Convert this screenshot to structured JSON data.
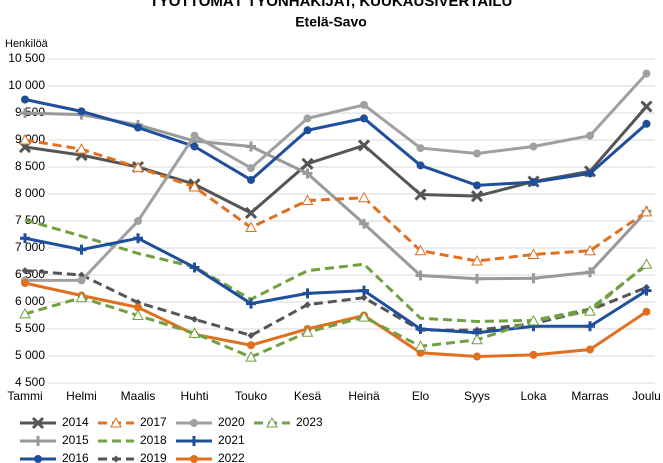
{
  "chart_data": {
    "type": "line",
    "title": "TYÖTTÖMÄT TYÖNHAKIJAT, KUUKAUSIVERTAILU",
    "subtitle": "Etelä-Savo",
    "y_label": "Henkilöä",
    "categories": [
      "Tammi",
      "Helmi",
      "Maalis",
      "Huhti",
      "Touko",
      "Kesä",
      "Heinä",
      "Elo",
      "Syys",
      "Loka",
      "Marras",
      "Joulu"
    ],
    "ylim": [
      4500,
      10500
    ],
    "yticks": [
      {
        "value": 4500,
        "label": "4 500"
      },
      {
        "value": 5000,
        "label": "5 000"
      },
      {
        "value": 5500,
        "label": "5 500"
      },
      {
        "value": 6000,
        "label": "6 000"
      },
      {
        "value": 6500,
        "label": "6 500"
      },
      {
        "value": 7000,
        "label": "7 000"
      },
      {
        "value": 7500,
        "label": "7 500"
      },
      {
        "value": 8000,
        "label": "8 000"
      },
      {
        "value": 8500,
        "label": "8 500"
      },
      {
        "value": 9000,
        "label": "9 000"
      },
      {
        "value": 9500,
        "label": "9 500"
      },
      {
        "value": 10000,
        "label": "10 000"
      },
      {
        "value": 10500,
        "label": "10 500"
      }
    ],
    "grid": true,
    "legend": "bottom",
    "series": [
      {
        "name": "2014",
        "color": "#555555",
        "dashed": false,
        "marker": "x",
        "values": [
          8870,
          8720,
          8500,
          8180,
          7650,
          8560,
          8900,
          7990,
          7960,
          8230,
          8420,
          9620
        ]
      },
      {
        "name": "2015",
        "color": "#999999",
        "dashed": false,
        "marker": "plus",
        "values": [
          9500,
          9470,
          9280,
          8980,
          8880,
          8380,
          7450,
          6490,
          6430,
          6440,
          6550,
          7680
        ]
      },
      {
        "name": "2016",
        "color": "#1f4e9a",
        "dashed": false,
        "marker": "circle",
        "values": [
          9750,
          9530,
          9230,
          8880,
          8260,
          9180,
          9400,
          8530,
          8160,
          8220,
          8380,
          9300
        ]
      },
      {
        "name": "2017",
        "color": "#e07020",
        "dashed": true,
        "marker": "triangle",
        "values": [
          9000,
          8830,
          8490,
          8130,
          7380,
          7880,
          7930,
          6950,
          6760,
          6880,
          6950,
          7670
        ]
      },
      {
        "name": "2018",
        "color": "#70a040",
        "dashed": true,
        "marker": "none",
        "values": [
          7520,
          7220,
          6900,
          6650,
          6050,
          6580,
          6700,
          5700,
          5640,
          5660,
          5870,
          6680
        ]
      },
      {
        "name": "2019",
        "color": "#555555",
        "dashed": true,
        "marker": "diamond",
        "values": [
          6580,
          6500,
          5990,
          5680,
          5380,
          5950,
          6080,
          5480,
          5480,
          5600,
          5850,
          6270
        ]
      },
      {
        "name": "2020",
        "color": "#a0a0a0",
        "dashed": false,
        "marker": "circle",
        "values": [
          6400,
          6400,
          7500,
          9080,
          8480,
          9400,
          9650,
          8850,
          8750,
          8880,
          9080,
          10230
        ]
      },
      {
        "name": "2021",
        "color": "#1f4e9a",
        "dashed": false,
        "marker": "plus",
        "values": [
          7180,
          6970,
          7180,
          6640,
          5970,
          6160,
          6210,
          5500,
          5430,
          5550,
          5550,
          6210
        ]
      },
      {
        "name": "2022",
        "color": "#e07020",
        "dashed": false,
        "marker": "circle",
        "values": [
          6350,
          6120,
          5900,
          5400,
          5200,
          5500,
          5750,
          5060,
          4990,
          5020,
          5120,
          5820
        ]
      },
      {
        "name": "2023",
        "color": "#70a040",
        "dashed": true,
        "marker": "triangle",
        "values": [
          5780,
          6080,
          5750,
          5420,
          4980,
          5440,
          5720,
          5180,
          5300,
          5650,
          5830,
          6700
        ]
      }
    ]
  }
}
